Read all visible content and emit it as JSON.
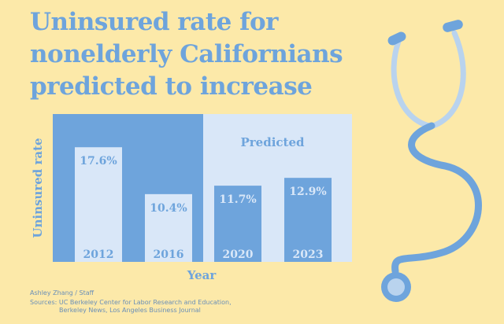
{
  "title_lines": [
    "Uninsured rate for",
    "nonelderly Californians",
    "predicted to increase"
  ],
  "byline": "Ashley Zhang / Staff",
  "sources": {
    "line1": "Sources: UC Berkeley Center for Labor Research and Education,",
    "line2": "Berkeley News, Los Angeles Business Journal"
  },
  "colors": {
    "background": "#fce9a9",
    "accent": "#6ea4dc",
    "bar_past": "#d9e7f8",
    "bar_predicted": "#6ea4dc",
    "predicted_bg": "#d9e7f8"
  },
  "chart_data": {
    "type": "bar",
    "categories": [
      "2012",
      "2016",
      "2020",
      "2023"
    ],
    "values": [
      17.6,
      10.4,
      11.7,
      12.9
    ],
    "value_labels": [
      "17.6%",
      "10.4%",
      "11.7%",
      "12.9%"
    ],
    "predicted": [
      false,
      false,
      true,
      true
    ],
    "predicted_label": "Predicted",
    "xlabel": "Year",
    "ylabel": "Uninsured rate",
    "ylim": [
      0,
      22.7
    ],
    "grid": false,
    "legend": "none"
  },
  "decoration": "stethoscope-illustration"
}
